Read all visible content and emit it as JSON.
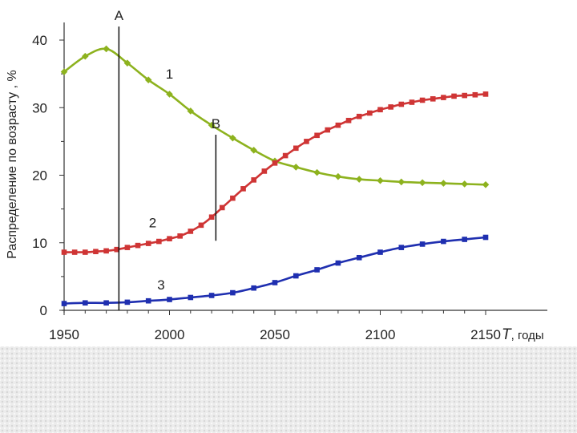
{
  "chart_data": {
    "type": "line",
    "ylabel": "Распределение по возрасту , %",
    "xlabel_italic": "T",
    "xlabel_rest": ", годы",
    "xlim": [
      1950,
      2150
    ],
    "ylim": [
      0,
      40
    ],
    "x_ticks": [
      1950,
      2000,
      2050,
      2100,
      2150
    ],
    "y_ticks": [
      0,
      10,
      20,
      30,
      40
    ],
    "grid": false,
    "colors": {
      "s1": "#8db21e",
      "s2": "#cf3535",
      "s3": "#1f2fb0",
      "axes": "#333333"
    },
    "series": [
      {
        "name": "1",
        "color": "#8db21e",
        "marker": "diamond",
        "x": [
          1950,
          1960,
          1970,
          1980,
          1990,
          2000,
          2010,
          2020,
          2030,
          2040,
          2050,
          2060,
          2070,
          2080,
          2090,
          2100,
          2110,
          2120,
          2130,
          2140,
          2150
        ],
        "y": [
          35.3,
          37.6,
          38.7,
          36.6,
          34.1,
          32.0,
          29.5,
          27.4,
          25.5,
          23.7,
          22.1,
          21.2,
          20.4,
          19.8,
          19.4,
          19.2,
          19.0,
          18.9,
          18.8,
          18.7,
          18.6
        ]
      },
      {
        "name": "2",
        "color": "#cf3535",
        "marker": "square",
        "x": [
          1950,
          1955,
          1960,
          1965,
          1970,
          1975,
          1980,
          1985,
          1990,
          1995,
          2000,
          2005,
          2010,
          2015,
          2020,
          2025,
          2030,
          2035,
          2040,
          2045,
          2050,
          2055,
          2060,
          2065,
          2070,
          2075,
          2080,
          2085,
          2090,
          2095,
          2100,
          2105,
          2110,
          2115,
          2120,
          2125,
          2130,
          2135,
          2140,
          2145,
          2150
        ],
        "y": [
          8.6,
          8.6,
          8.6,
          8.7,
          8.8,
          9.0,
          9.3,
          9.6,
          9.9,
          10.2,
          10.6,
          11.0,
          11.7,
          12.6,
          13.8,
          15.2,
          16.6,
          18.0,
          19.3,
          20.6,
          21.8,
          22.9,
          24.0,
          25.0,
          25.9,
          26.7,
          27.4,
          28.1,
          28.7,
          29.2,
          29.7,
          30.1,
          30.5,
          30.8,
          31.1,
          31.3,
          31.5,
          31.7,
          31.8,
          31.9,
          32.0
        ]
      },
      {
        "name": "3",
        "color": "#1f2fb0",
        "marker": "square",
        "x": [
          1950,
          1960,
          1970,
          1980,
          1990,
          2000,
          2010,
          2020,
          2030,
          2040,
          2050,
          2060,
          2070,
          2080,
          2090,
          2100,
          2110,
          2120,
          2130,
          2140,
          2150
        ],
        "y": [
          1.0,
          1.1,
          1.1,
          1.2,
          1.4,
          1.6,
          1.9,
          2.2,
          2.6,
          3.3,
          4.1,
          5.1,
          6.0,
          7.0,
          7.8,
          8.6,
          9.3,
          9.8,
          10.2,
          10.5,
          10.8
        ]
      }
    ],
    "annotations": [
      {
        "label": "A",
        "type": "vline",
        "x": 1976,
        "y_from": 0,
        "y_to": 42
      },
      {
        "label": "B",
        "type": "vline",
        "x": 2022,
        "y_from": 10.3,
        "y_to": 26
      },
      {
        "label": "1",
        "type": "text",
        "x": 2000,
        "y": 35
      },
      {
        "label": "2",
        "type": "text",
        "x": 1992,
        "y": 13
      },
      {
        "label": "3",
        "type": "text",
        "x": 1996,
        "y": 3.8
      }
    ]
  }
}
